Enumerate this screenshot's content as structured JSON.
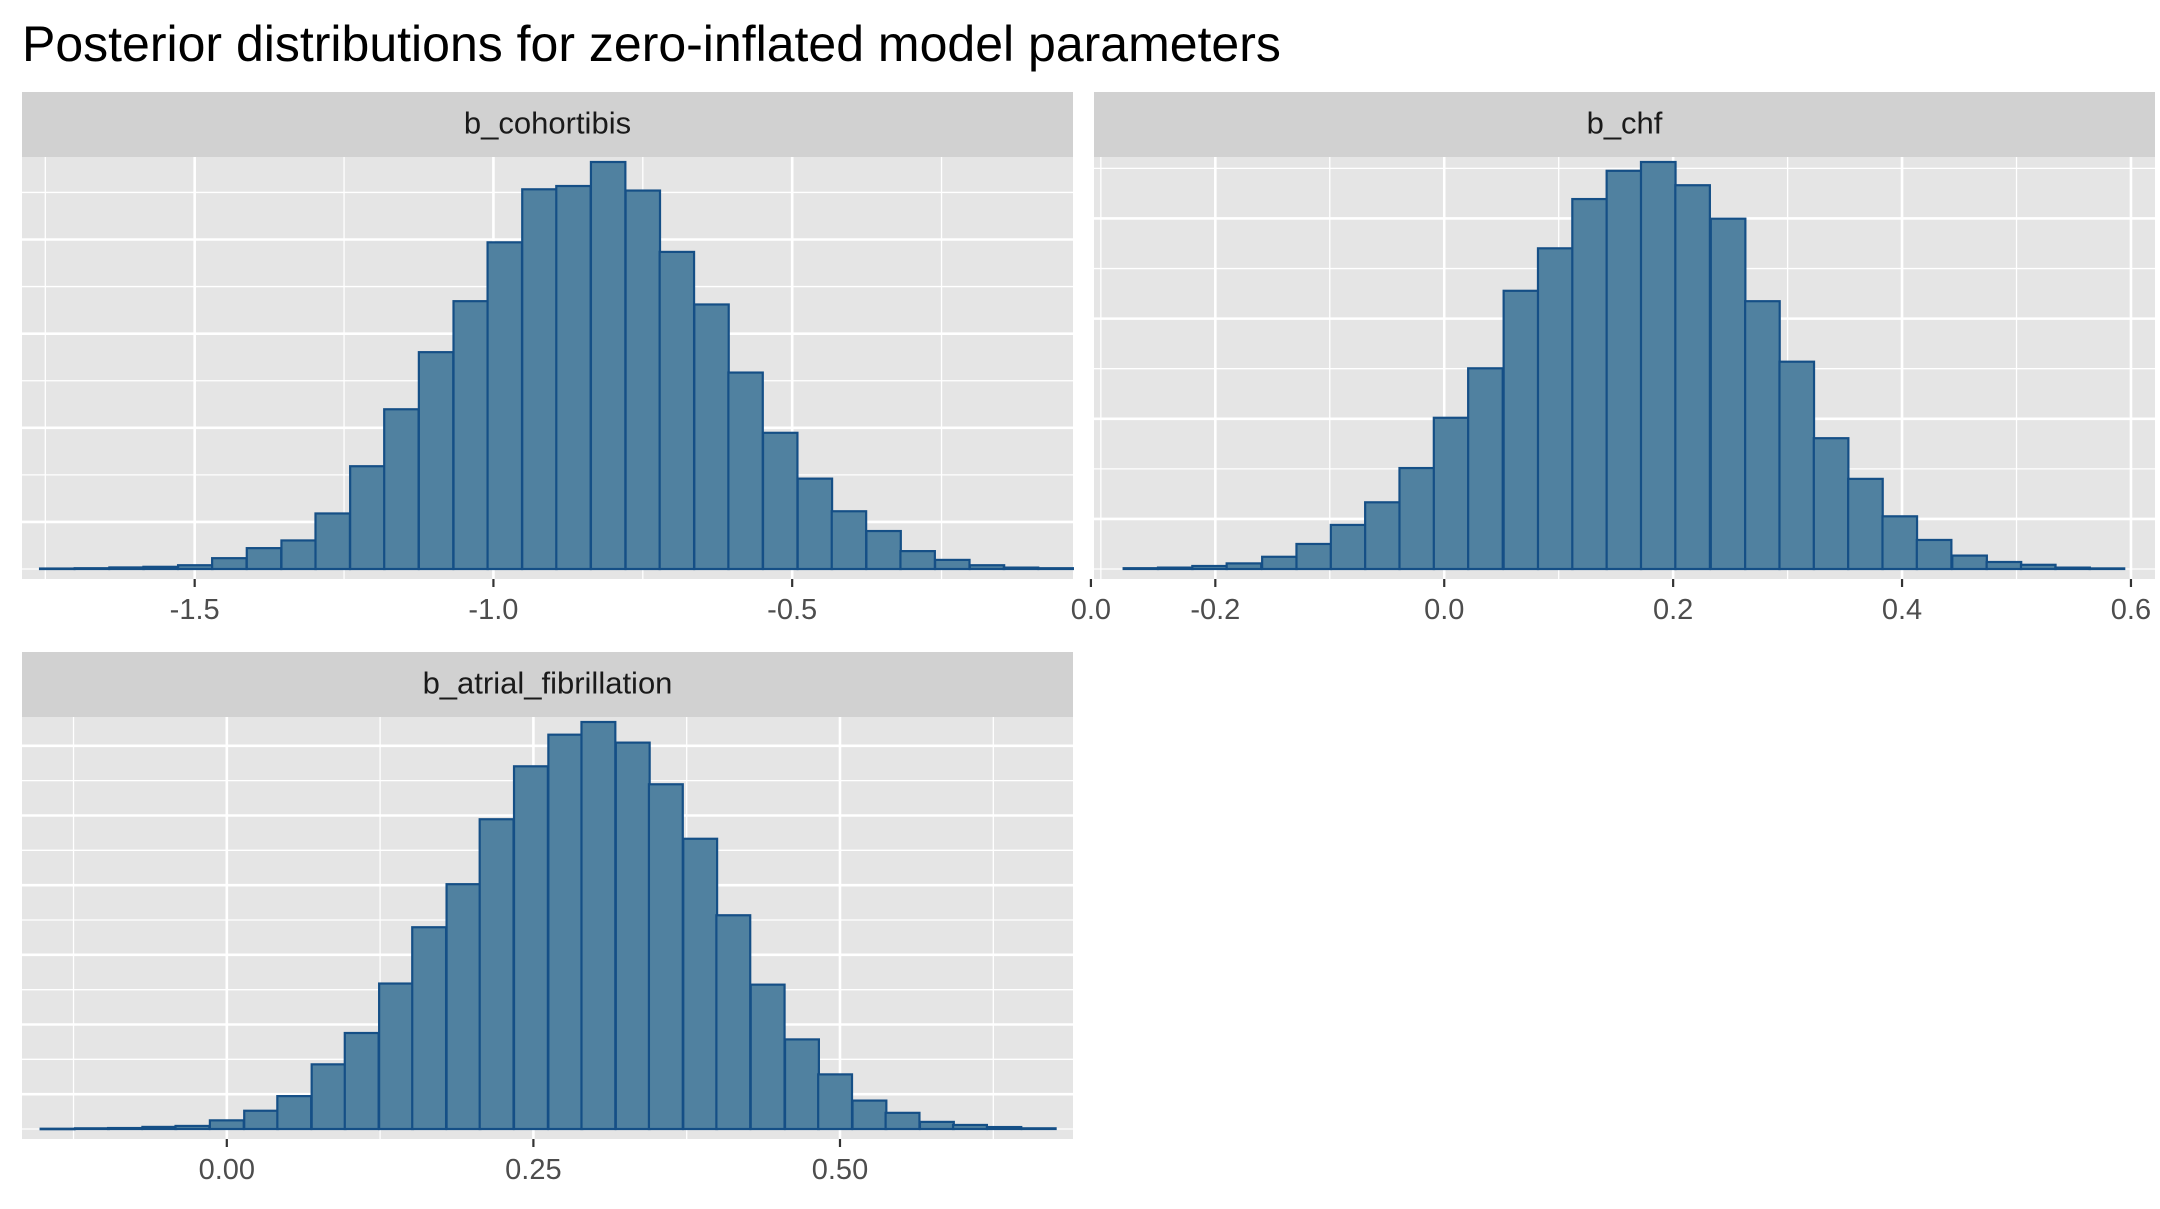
{
  "title": "Posterior distributions for zero-inflated model parameters",
  "colors": {
    "bar_fill": "#5081a0",
    "bar_outline": "#154f86",
    "panel_background": "#e5e5e5",
    "strip_background": "#d1d1d1",
    "gridline": "#ffffff"
  },
  "chart_data": [
    {
      "type": "bar",
      "subtype": "histogram",
      "facet_label": "b_cohortibis",
      "bin_width": 0.0576,
      "x": [
        -1.73,
        -1.672,
        -1.614,
        -1.557,
        -1.499,
        -1.442,
        -1.384,
        -1.326,
        -1.269,
        -1.211,
        -1.154,
        -1.096,
        -1.038,
        -0.981,
        -0.923,
        -0.866,
        -0.808,
        -0.75,
        -0.693,
        -0.635,
        -0.578,
        -0.52,
        -0.462,
        -0.405,
        -0.347,
        -0.29,
        -0.232,
        -0.174,
        -0.117,
        -0.059
      ],
      "values": [
        0.3,
        0.5,
        1.0,
        1.4,
        2.4,
        6.9,
        13.3,
        18.2,
        35.4,
        65.5,
        101.8,
        138.2,
        170.7,
        208.2,
        242.0,
        244.1,
        259.4,
        241.2,
        202.1,
        168.6,
        125.2,
        86.8,
        57.6,
        36.8,
        24.2,
        11.4,
        5.8,
        2.4,
        0.9,
        0.5
      ],
      "ylim": [
        0,
        259.4
      ],
      "xlim": [
        -1.789,
        -0.03
      ],
      "x_ticks": [
        "-1.5",
        "-1.0",
        "-0.5",
        "0.0"
      ],
      "x_tick_values": [
        -1.5,
        -1.0,
        -0.5,
        0.0
      ],
      "x_minor_values": [
        -1.75,
        -1.25,
        -0.75,
        -0.25
      ],
      "y_major_values": [
        30,
        90,
        150,
        210
      ],
      "y_minor_values": [
        0,
        60,
        120,
        180,
        240
      ],
      "grid": true
    },
    {
      "type": "bar",
      "subtype": "histogram",
      "facet_label": "b_chf",
      "bin_width": 0.0302,
      "x": [
        -0.265,
        -0.235,
        -0.205,
        -0.175,
        -0.144,
        -0.114,
        -0.084,
        -0.054,
        -0.024,
        0.006,
        0.036,
        0.067,
        0.097,
        0.127,
        0.157,
        0.187,
        0.217,
        0.248,
        0.278,
        0.308,
        0.338,
        0.368,
        0.398,
        0.428,
        0.459,
        0.489,
        0.519,
        0.549,
        0.579
      ],
      "values": [
        0.4,
        0.7,
        1.5,
        2.8,
        6.1,
        12.5,
        22.0,
        33.3,
        50.4,
        75.5,
        100.2,
        138.9,
        160.1,
        184.7,
        198.8,
        203.2,
        191.6,
        174.9,
        133.7,
        103.5,
        65.3,
        45.0,
        26.3,
        14.5,
        6.7,
        3.5,
        2.1,
        0.7,
        0.3
      ],
      "ylim": [
        0,
        203.2
      ],
      "xlim": [
        -0.306,
        0.621
      ],
      "x_ticks": [
        "-0.2",
        "0.0",
        "0.2",
        "0.4",
        "0.6"
      ],
      "x_tick_values": [
        -0.2,
        0.0,
        0.2,
        0.4,
        0.6
      ],
      "x_minor_values": [
        -0.3,
        -0.1,
        0.1,
        0.3,
        0.5
      ],
      "y_major_values": [
        25,
        75,
        125,
        175
      ],
      "y_minor_values": [
        0,
        50,
        100,
        150,
        200
      ],
      "grid": true
    },
    {
      "type": "bar",
      "subtype": "histogram",
      "facet_label": "b_atrial_fibrillation",
      "bin_width": 0.0276,
      "x": [
        -0.138,
        -0.11,
        -0.083,
        -0.055,
        -0.028,
        0.0,
        0.028,
        0.055,
        0.083,
        0.11,
        0.138,
        0.165,
        0.193,
        0.22,
        0.248,
        0.276,
        0.303,
        0.331,
        0.358,
        0.386,
        0.413,
        0.441,
        0.469,
        0.496,
        0.524,
        0.551,
        0.579,
        0.606,
        0.634,
        0.662
      ],
      "values": [
        0.2,
        0.5,
        0.7,
        1.5,
        2.2,
        6.2,
        13.1,
        23.6,
        46.4,
        68.9,
        104.4,
        144.8,
        175.7,
        222.3,
        260.3,
        283.0,
        292.1,
        277.3,
        247.4,
        208.3,
        153.4,
        103.6,
        64.3,
        39.2,
        20.4,
        11.6,
        5.1,
        2.9,
        1.4,
        0.5
      ],
      "ylim": [
        0,
        292.1
      ],
      "xlim": [
        -0.167,
        0.69
      ],
      "x_ticks": [
        "0.00",
        "0.25",
        "0.50"
      ],
      "x_tick_values": [
        0.0,
        0.25,
        0.5
      ],
      "x_minor_values": [
        -0.125,
        0.125,
        0.375,
        0.625
      ],
      "y_major_values": [
        25,
        75,
        125,
        175,
        225,
        275
      ],
      "y_minor_values": [
        0,
        50,
        100,
        150,
        200,
        250
      ],
      "grid": true
    }
  ]
}
